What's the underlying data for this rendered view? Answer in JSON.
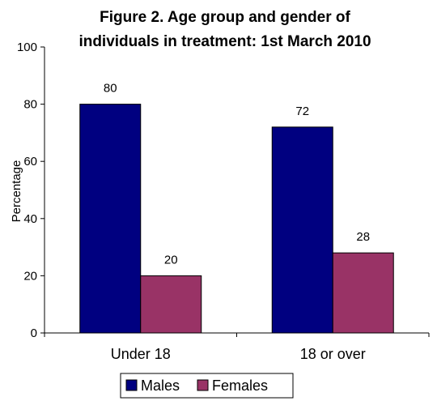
{
  "chart_data": {
    "type": "bar",
    "title": "Figure 2. Age group and gender of individuals in treatment: 1st March 2010",
    "title_lines": [
      "Figure 2. Age group and gender of",
      "individuals in treatment: 1st March 2010"
    ],
    "xlabel": "",
    "ylabel": "Percentage",
    "ylim": [
      0,
      100
    ],
    "yticks": [
      0,
      20,
      40,
      60,
      80,
      100
    ],
    "grid": false,
    "legend_position": "bottom",
    "categories": [
      "Under 18",
      "18 or over"
    ],
    "series": [
      {
        "name": "Males",
        "values": [
          80,
          72
        ],
        "color": "#000080"
      },
      {
        "name": "Females",
        "values": [
          20,
          28
        ],
        "color": "#993366"
      }
    ]
  }
}
